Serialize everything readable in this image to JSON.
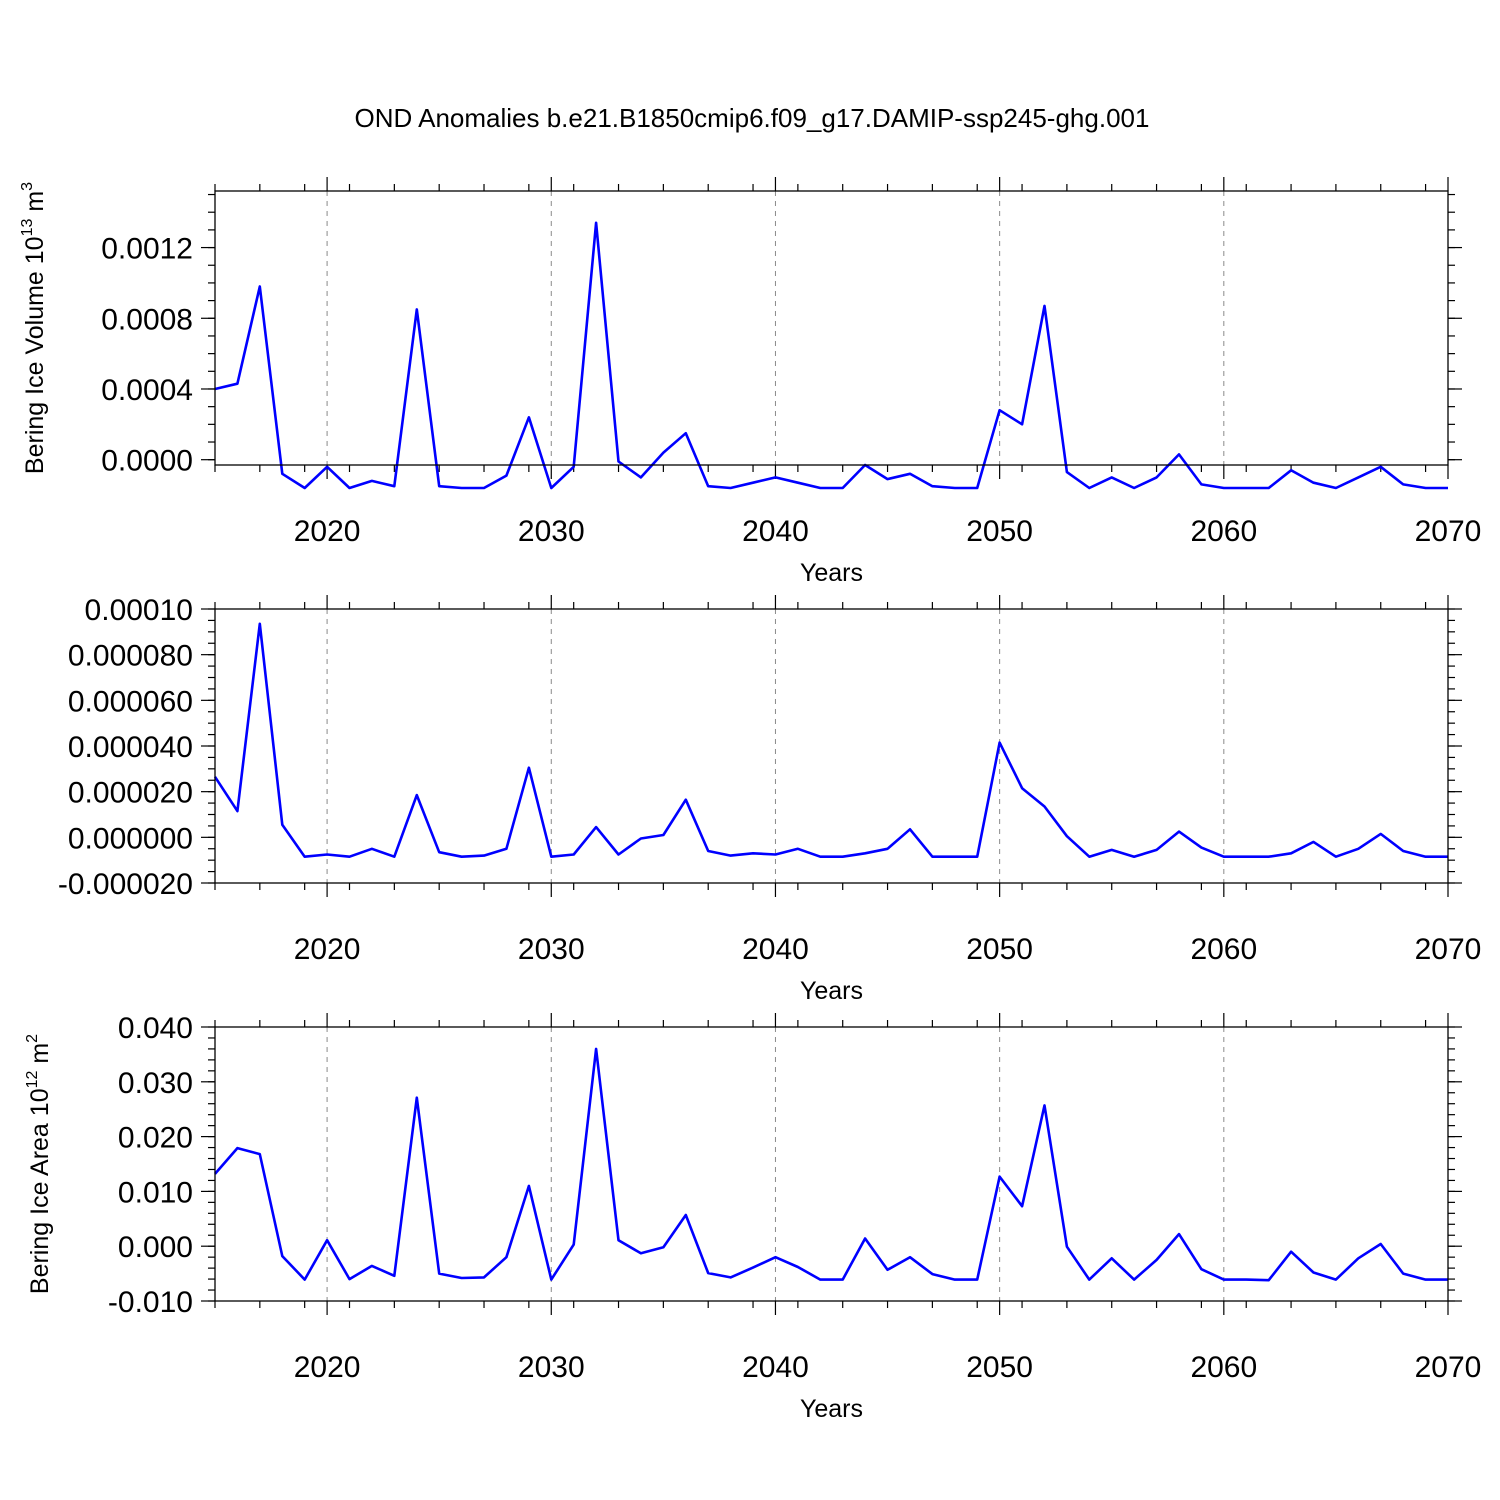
{
  "figure": {
    "title": "OND Anomalies b.e21.B1850cmip6.f09_g17.DAMIP-ssp245-ghg.001"
  },
  "chart_data": [
    {
      "type": "line",
      "name": "ice-volume",
      "ylabel": "Bering Ice Volume 10",
      "ylabel_exp": "13",
      "ylabel_unit": " m",
      "ylabel_unit_exp": "3",
      "xlabel": "Years",
      "xlim": [
        2015,
        2070
      ],
      "ylim": [
        -3e-05,
        0.00152
      ],
      "x_ticks": [
        2020,
        2030,
        2040,
        2050,
        2060,
        2070
      ],
      "y_ticks": [
        0.0,
        0.0004,
        0.0008,
        0.0012
      ],
      "y_tick_labels": [
        "0.0000",
        "0.0004",
        "0.0008",
        "0.0012"
      ],
      "y_minor_step": 0.0001,
      "line_color": "#0000ff",
      "x": [
        2015,
        2016,
        2017,
        2018,
        2019,
        2020,
        2021,
        2022,
        2023,
        2024,
        2025,
        2026,
        2027,
        2028,
        2029,
        2030,
        2031,
        2032,
        2033,
        2034,
        2035,
        2036,
        2037,
        2038,
        2039,
        2040,
        2041,
        2042,
        2043,
        2044,
        2045,
        2046,
        2047,
        2048,
        2049,
        2050,
        2051,
        2052,
        2053,
        2054,
        2055,
        2056,
        2057,
        2058,
        2059,
        2060,
        2061,
        2062,
        2063,
        2064,
        2065,
        2066,
        2067,
        2068,
        2069,
        2070
      ],
      "values": [
        0.0004,
        0.00043,
        0.00098,
        -8e-05,
        -0.00016,
        -4e-05,
        -0.00016,
        -0.00012,
        -0.00015,
        0.00085,
        -0.00015,
        -0.00016,
        -0.00016,
        -9e-05,
        0.00024,
        -0.00016,
        -4e-05,
        0.00134,
        -1e-05,
        -0.0001,
        4e-05,
        0.00015,
        -0.00015,
        -0.00016,
        -0.00013,
        -0.0001,
        -0.00013,
        -0.00016,
        -0.00016,
        -3e-05,
        -0.00011,
        -8e-05,
        -0.00015,
        -0.00016,
        -0.00016,
        0.00028,
        0.0002,
        0.00087,
        -7e-05,
        -0.00016,
        -0.0001,
        -0.00016,
        -0.0001,
        3e-05,
        -0.00014,
        -0.00016,
        -0.00016,
        -0.00016,
        -6e-05,
        -0.00013,
        -0.00016,
        -0.0001,
        -4e-05,
        -0.00014,
        -0.00016,
        -0.00016
      ]
    },
    {
      "type": "line",
      "name": "middle-series",
      "ylabel": "",
      "xlabel": "Years",
      "xlim": [
        2015,
        2070
      ],
      "ylim": [
        -2e-05,
        0.0001
      ],
      "x_ticks": [
        2020,
        2030,
        2040,
        2050,
        2060,
        2070
      ],
      "y_ticks": [
        -2e-05,
        0.0,
        2e-05,
        4e-05,
        6e-05,
        8e-05,
        0.0001
      ],
      "y_tick_labels": [
        "-0.000020",
        "0.000000",
        "0.000020",
        "0.000040",
        "0.000060",
        "0.000080",
        "0.00010"
      ],
      "y_minor_step": 5e-06,
      "line_color": "#0000ff",
      "x": [
        2015,
        2016,
        2017,
        2018,
        2019,
        2020,
        2021,
        2022,
        2023,
        2024,
        2025,
        2026,
        2027,
        2028,
        2029,
        2030,
        2031,
        2032,
        2033,
        2034,
        2035,
        2036,
        2037,
        2038,
        2039,
        2040,
        2041,
        2042,
        2043,
        2044,
        2045,
        2046,
        2047,
        2048,
        2049,
        2050,
        2051,
        2052,
        2053,
        2054,
        2055,
        2056,
        2057,
        2058,
        2059,
        2060,
        2061,
        2062,
        2063,
        2064,
        2065,
        2066,
        2067,
        2068,
        2069,
        2070
      ],
      "values": [
        2.65e-05,
        1.15e-05,
        9.35e-05,
        5.5e-06,
        -8.5e-06,
        -7.5e-06,
        -8.5e-06,
        -5e-06,
        -8.5e-06,
        1.85e-05,
        -6.5e-06,
        -8.5e-06,
        -8e-06,
        -5e-06,
        3.05e-05,
        -8.5e-06,
        -7.5e-06,
        4.5e-06,
        -7.5e-06,
        -5e-07,
        1e-06,
        1.65e-05,
        -6e-06,
        -8e-06,
        -7e-06,
        -7.5e-06,
        -5e-06,
        -8.5e-06,
        -8.5e-06,
        -7e-06,
        -5e-06,
        3.5e-06,
        -8.5e-06,
        -8.5e-06,
        -8.5e-06,
        4.15e-05,
        2.15e-05,
        1.35e-05,
        5e-07,
        -8.5e-06,
        -5.5e-06,
        -8.5e-06,
        -5.5e-06,
        2.5e-06,
        -4.5e-06,
        -8.5e-06,
        -8.5e-06,
        -8.5e-06,
        -7e-06,
        -2e-06,
        -8.5e-06,
        -5e-06,
        1.5e-06,
        -6e-06,
        -8.5e-06,
        -8.5e-06
      ]
    },
    {
      "type": "line",
      "name": "ice-area",
      "ylabel": "Bering Ice Area 10",
      "ylabel_exp": "12",
      "ylabel_unit": " m",
      "ylabel_unit_exp": "2",
      "xlabel": "Years",
      "xlim": [
        2015,
        2070
      ],
      "ylim": [
        -0.01,
        0.04
      ],
      "x_ticks": [
        2020,
        2030,
        2040,
        2050,
        2060,
        2070
      ],
      "y_ticks": [
        -0.01,
        0.0,
        0.01,
        0.02,
        0.03,
        0.04
      ],
      "y_tick_labels": [
        "-0.010",
        "0.000",
        "0.010",
        "0.020",
        "0.030",
        "0.040"
      ],
      "y_minor_step": 0.002,
      "line_color": "#0000ff",
      "x": [
        2015,
        2016,
        2017,
        2018,
        2019,
        2020,
        2021,
        2022,
        2023,
        2024,
        2025,
        2026,
        2027,
        2028,
        2029,
        2030,
        2031,
        2032,
        2033,
        2034,
        2035,
        2036,
        2037,
        2038,
        2039,
        2040,
        2041,
        2042,
        2043,
        2044,
        2045,
        2046,
        2047,
        2048,
        2049,
        2050,
        2051,
        2052,
        2053,
        2054,
        2055,
        2056,
        2057,
        2058,
        2059,
        2060,
        2061,
        2062,
        2063,
        2064,
        2065,
        2066,
        2067,
        2068,
        2069,
        2070
      ],
      "values": [
        0.0132,
        0.0179,
        0.0168,
        -0.0018,
        -0.0061,
        0.0011,
        -0.006,
        -0.0036,
        -0.0054,
        0.0271,
        -0.005,
        -0.0058,
        -0.0057,
        -0.002,
        0.011,
        -0.0061,
        0.0003,
        0.036,
        0.0011,
        -0.0013,
        -0.0002,
        0.0057,
        -0.0049,
        -0.0057,
        -0.0039,
        -0.002,
        -0.0038,
        -0.0061,
        -0.0061,
        0.0014,
        -0.0043,
        -0.002,
        -0.0051,
        -0.0061,
        -0.0061,
        0.0127,
        0.0073,
        0.0257,
        -0.0001,
        -0.0061,
        -0.0022,
        -0.0061,
        -0.0025,
        0.0022,
        -0.0042,
        -0.0061,
        -0.0061,
        -0.0062,
        -0.001,
        -0.0048,
        -0.0061,
        -0.0022,
        0.0004,
        -0.005,
        -0.0061,
        -0.0061
      ]
    }
  ]
}
